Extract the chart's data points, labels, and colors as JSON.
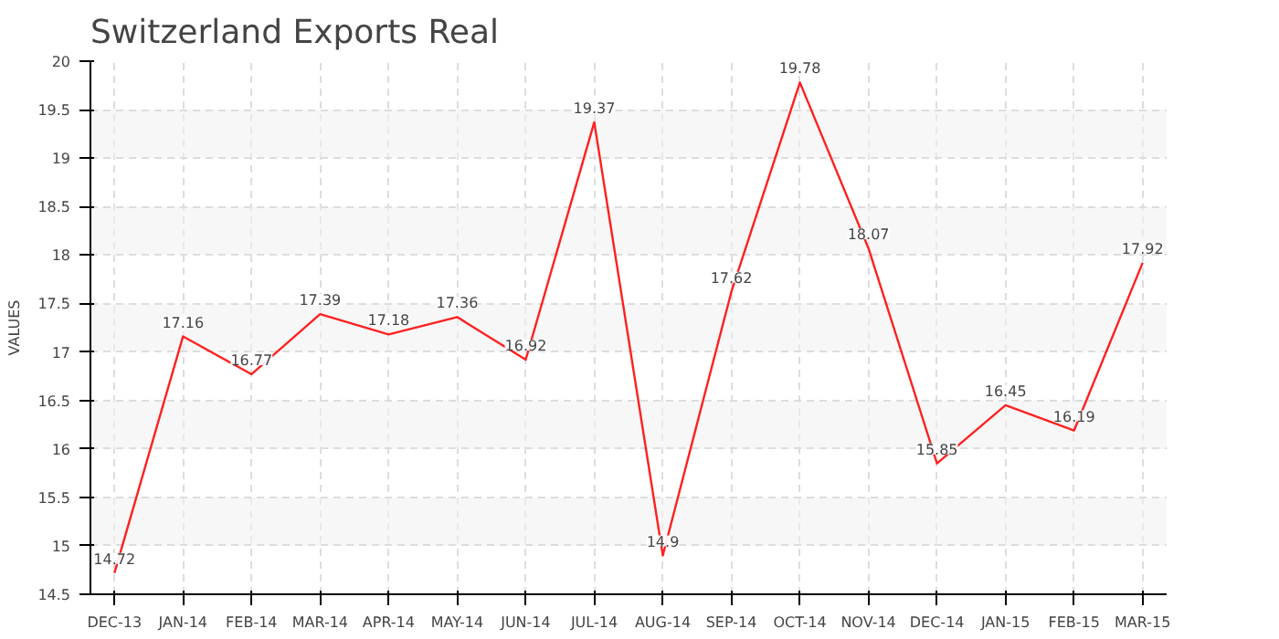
{
  "chart_data": {
    "type": "line",
    "title": "Switzerland Exports Real",
    "ylabel": "VALUES",
    "categories": [
      "DEC-13",
      "JAN-14",
      "FEB-14",
      "MAR-14",
      "APR-14",
      "MAY-14",
      "JUN-14",
      "JUL-14",
      "AUG-14",
      "SEP-14",
      "OCT-14",
      "NOV-14",
      "DEC-14",
      "JAN-15",
      "FEB-15",
      "MAR-15"
    ],
    "series": [
      {
        "color": "#ff2020",
        "values": [
          14.72,
          17.16,
          16.77,
          17.39,
          17.18,
          17.36,
          16.92,
          19.37,
          14.9,
          17.62,
          19.78,
          18.07,
          15.85,
          16.45,
          16.19,
          17.92
        ]
      }
    ],
    "ylim": [
      14.5,
      20
    ],
    "yticks": [
      14.5,
      15,
      15.5,
      16,
      16.5,
      17,
      17.5,
      18,
      18.5,
      19,
      19.5,
      20
    ],
    "grid": true,
    "data_labels": true,
    "marker": "none",
    "line_style": "solid"
  }
}
